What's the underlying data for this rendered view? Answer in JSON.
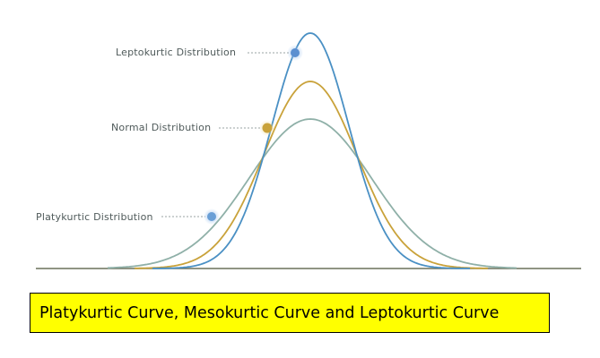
{
  "labels": {
    "leptokurtic": "Leptokurtic Distribution",
    "normal": "Normal Distribution",
    "platykurtic": "Platykurtic Distribution"
  },
  "caption": "Platykurtic Curve, Mesokurtic Curve and Leptokurtic Curve",
  "colors": {
    "leptokurtic_curve": "#4a90c4",
    "normal_curve": "#c9a23a",
    "platykurtic_curve": "#8fb0a8",
    "leptokurtic_marker": "#5b8fd0",
    "normal_marker": "#c9a23a",
    "platykurtic_marker": "#6a9fd6",
    "label_text": "#4f5a5a",
    "baseline": "#6b705a",
    "caption_background": "#ffff00"
  }
}
